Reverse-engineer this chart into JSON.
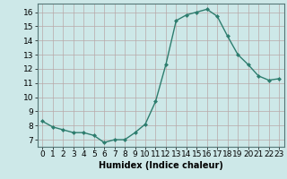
{
  "x": [
    0,
    1,
    2,
    3,
    4,
    5,
    6,
    7,
    8,
    9,
    10,
    11,
    12,
    13,
    14,
    15,
    16,
    17,
    18,
    19,
    20,
    21,
    22,
    23
  ],
  "y": [
    8.3,
    7.9,
    7.7,
    7.5,
    7.5,
    7.3,
    6.8,
    7.0,
    7.0,
    7.5,
    8.1,
    9.7,
    12.3,
    15.4,
    15.8,
    16.0,
    16.2,
    15.7,
    14.3,
    13.0,
    12.3,
    11.5,
    11.2,
    11.3
  ],
  "line_color": "#2d7d6e",
  "marker": "D",
  "marker_size": 2.0,
  "line_width": 1.0,
  "bg_color": "#cde8e8",
  "grid_color": "#b8a8a8",
  "xlabel": "Humidex (Indice chaleur)",
  "ylabel_ticks": [
    7,
    8,
    9,
    10,
    11,
    12,
    13,
    14,
    15,
    16
  ],
  "ylim": [
    6.5,
    16.6
  ],
  "xlim": [
    -0.5,
    23.5
  ],
  "xlabel_fontsize": 7,
  "tick_fontsize": 6.5,
  "title": ""
}
